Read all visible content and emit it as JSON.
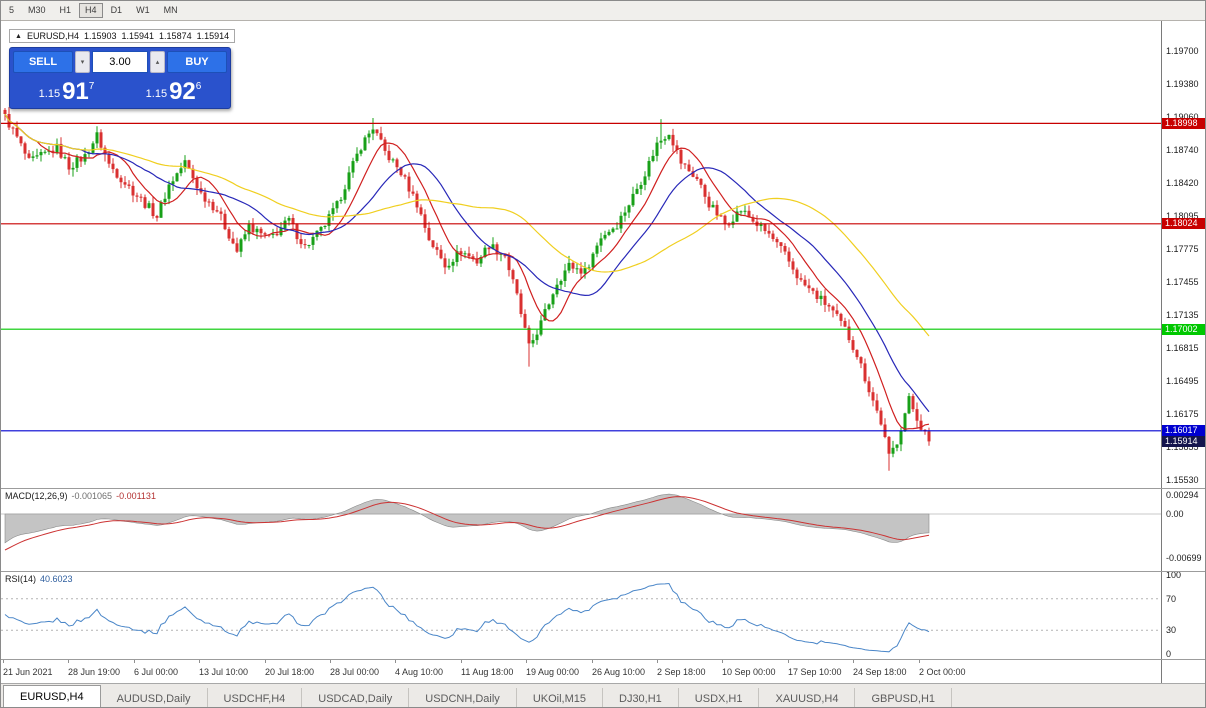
{
  "toolbar": {
    "timeframes": [
      {
        "label": "5",
        "active": false
      },
      {
        "label": "M30",
        "active": false
      },
      {
        "label": "H1",
        "active": false
      },
      {
        "label": "H4",
        "active": true
      },
      {
        "label": "D1",
        "active": false
      },
      {
        "label": "W1",
        "active": false
      },
      {
        "label": "MN",
        "active": false
      }
    ]
  },
  "chart": {
    "symbol_line": {
      "symbol": "EURUSD,H4",
      "open": "1.15903",
      "high": "1.15941",
      "low": "1.15874",
      "close": "1.15914"
    }
  },
  "trade_panel": {
    "sell_label": "SELL",
    "buy_label": "BUY",
    "lot_size": "3.00",
    "sell_price": {
      "prefix": "1.15",
      "big": "91",
      "sup": "7"
    },
    "buy_price": {
      "prefix": "1.15",
      "big": "92",
      "sup": "6"
    }
  },
  "chart_data": {
    "type": "candlestick",
    "symbol": "EURUSD",
    "timeframe": "H4",
    "candle_count": 232,
    "axis_top_price": 1.197,
    "axis_tick_step": 0.0032,
    "price_axis": [
      "1.19700",
      "1.19380",
      "1.19060",
      "1.18740",
      "1.18420",
      "1.18095",
      "1.17775",
      "1.17455",
      "1.17135",
      "1.16815",
      "1.16495",
      "1.16175",
      "1.15855",
      "1.15530"
    ],
    "time_axis": [
      "21 Jun 2021",
      "28 Jun 19:00",
      "6 Jul 00:00",
      "13 Jul 10:00",
      "20 Jul 18:00",
      "28 Jul 00:00",
      "4 Aug 10:00",
      "11 Aug 18:00",
      "19 Aug 00:00",
      "26 Aug 10:00",
      "2 Sep 18:00",
      "10 Sep 00:00",
      "17 Sep 10:00",
      "24 Sep 18:00",
      "2 Oct 00:00"
    ],
    "hlines": [
      {
        "price": 1.18998,
        "label": "1.18998",
        "color": "#c80000"
      },
      {
        "price": 1.18024,
        "label": "1.18024",
        "color": "#c80000"
      },
      {
        "price": 1.17002,
        "label": "1.17002",
        "color": "#00c800"
      },
      {
        "price": 1.16017,
        "label": "1.16017",
        "color": "#0000d0"
      }
    ],
    "current_price": {
      "value": 1.15914,
      "label": "1.15914",
      "color": "#15154d"
    },
    "anchors": [
      [
        0,
        1.1906
      ],
      [
        3,
        1.1886
      ],
      [
        6,
        1.1862
      ],
      [
        10,
        1.187
      ],
      [
        13,
        1.1876
      ],
      [
        16,
        1.1858
      ],
      [
        20,
        1.1868
      ],
      [
        23,
        1.1888
      ],
      [
        26,
        1.186
      ],
      [
        31,
        1.1838
      ],
      [
        35,
        1.1822
      ],
      [
        38,
        1.181
      ],
      [
        41,
        1.184
      ],
      [
        45,
        1.1862
      ],
      [
        49,
        1.1832
      ],
      [
        53,
        1.1816
      ],
      [
        56,
        1.1792
      ],
      [
        58,
        1.1776
      ],
      [
        61,
        1.18
      ],
      [
        64,
        1.1792
      ],
      [
        66,
        1.1788
      ],
      [
        69,
        1.1798
      ],
      [
        71,
        1.1806
      ],
      [
        73,
        1.1792
      ],
      [
        75,
        1.178
      ],
      [
        79,
        1.1796
      ],
      [
        83,
        1.182
      ],
      [
        86,
        1.185
      ],
      [
        89,
        1.1878
      ],
      [
        92,
        1.1896
      ],
      [
        95,
        1.1872
      ],
      [
        99,
        1.1852
      ],
      [
        103,
        1.1822
      ],
      [
        106,
        1.1788
      ],
      [
        110,
        1.1762
      ],
      [
        114,
        1.1776
      ],
      [
        118,
        1.1766
      ],
      [
        121,
        1.1782
      ],
      [
        125,
        1.1772
      ],
      [
        128,
        1.1732
      ],
      [
        131,
        1.1682
      ],
      [
        134,
        1.1706
      ],
      [
        138,
        1.1746
      ],
      [
        141,
        1.1762
      ],
      [
        145,
        1.1756
      ],
      [
        149,
        1.179
      ],
      [
        153,
        1.1802
      ],
      [
        156,
        1.1822
      ],
      [
        160,
        1.1852
      ],
      [
        163,
        1.188
      ],
      [
        166,
        1.1892
      ],
      [
        169,
        1.1862
      ],
      [
        173,
        1.1846
      ],
      [
        176,
        1.1822
      ],
      [
        180,
        1.1802
      ],
      [
        184,
        1.1816
      ],
      [
        188,
        1.1802
      ],
      [
        191,
        1.1792
      ],
      [
        195,
        1.1772
      ],
      [
        199,
        1.1746
      ],
      [
        203,
        1.1732
      ],
      [
        206,
        1.1722
      ],
      [
        210,
        1.17
      ],
      [
        213,
        1.1676
      ],
      [
        216,
        1.1642
      ],
      [
        219,
        1.161
      ],
      [
        221,
        1.1576
      ],
      [
        223,
        1.1592
      ],
      [
        226,
        1.1632
      ],
      [
        229,
        1.1606
      ],
      [
        231,
        1.15914
      ]
    ],
    "spikes": [
      {
        "i": 1,
        "high": 1.1913
      },
      {
        "i": 23,
        "high": 1.1897
      },
      {
        "i": 92,
        "high": 1.1905
      },
      {
        "i": 131,
        "low": 1.1664
      },
      {
        "i": 164,
        "high": 1.1904
      },
      {
        "i": 221,
        "low": 1.1563
      }
    ],
    "moving_averages": [
      {
        "period": 9,
        "color": "#d02020"
      },
      {
        "period": 20,
        "color": "#2828b8"
      },
      {
        "period": 45,
        "color": "#f0cf20"
      }
    ],
    "colors": {
      "candle_up": "#18a018",
      "candle_down": "#d93030",
      "macd_hist": "#c4c4c4",
      "macd_hist_edge": "#8a8a8a",
      "macd_signal": "#cc3333",
      "rsi_line": "#4a86c8"
    }
  },
  "indicators": {
    "macd": {
      "name": "MACD(12,26,9)",
      "value_main": "-0.001065",
      "value_signal": "-0.001131",
      "axis": [
        "0.00294",
        "0.00",
        "-0.00699"
      ],
      "fast": 12,
      "slow": 26,
      "signal": 9
    },
    "rsi": {
      "name": "RSI(14)",
      "value": "40.6023",
      "axis": [
        "100",
        "70",
        "30",
        "0"
      ],
      "period": 14,
      "levels": [
        70,
        30
      ]
    }
  },
  "tabs": [
    {
      "label": "EURUSD,H4",
      "active": true
    },
    {
      "label": "AUDUSD,Daily",
      "active": false
    },
    {
      "label": "USDCHF,H4",
      "active": false
    },
    {
      "label": "USDCAD,Daily",
      "active": false
    },
    {
      "label": "USDCNH,Daily",
      "active": false
    },
    {
      "label": "UKOil,M15",
      "active": false
    },
    {
      "label": "DJ30,H1",
      "active": false
    },
    {
      "label": "USDX,H1",
      "active": false
    },
    {
      "label": "XAUUSD,H4",
      "active": false
    },
    {
      "label": "GBPUSD,H1",
      "active": false
    }
  ]
}
